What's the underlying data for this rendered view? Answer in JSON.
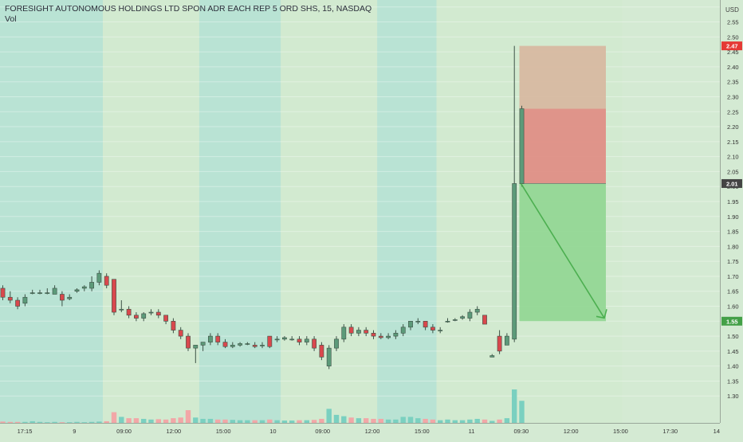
{
  "title": "FORESIGHT AUTONOMOUS HOLDINGS LTD SPON ADR EACH REP 5 ORD SHS, 15, NASDAQ",
  "volume_label": "Vol",
  "currency_label": "USD",
  "colors": {
    "session_a": "#b9e3d4",
    "session_b": "#d2ead0",
    "up_candle": "#5c9a79",
    "down_candle": "#d9484d",
    "vol_up": "#7ad0c0",
    "vol_down": "#f2a7a7",
    "stop_zone_light": "#d7b9a1",
    "stop_zone": "#df8f86",
    "target_zone": "#93d795",
    "arrow": "#4caf50",
    "price_tag_red": "#e53935",
    "price_tag_dark": "#444444",
    "price_tag_green": "#43a047"
  },
  "chart_data": {
    "type": "candlestick",
    "title": "FORESIGHT AUTONOMOUS HOLDINGS LTD SPON ADR EACH REP 5 ORD SHS, 15, NASDAQ",
    "interval": "15",
    "exchange": "NASDAQ",
    "ylim": [
      1.29,
      2.61
    ],
    "y_ticks": [
      "2.60",
      "2.55",
      "2.50",
      "2.45",
      "2.40",
      "2.35",
      "2.30",
      "2.25",
      "2.20",
      "2.15",
      "2.10",
      "2.05",
      "2.00",
      "1.95",
      "1.90",
      "1.85",
      "1.80",
      "1.75",
      "1.70",
      "1.65",
      "1.60",
      "1.55",
      "1.50",
      "1.45",
      "1.40",
      "1.35",
      "1.30"
    ],
    "x_tick_labels": [
      "17:15",
      "9",
      "09:00",
      "12:00",
      "15:00",
      "10",
      "09:00",
      "12:00",
      "15:00",
      "11",
      "09:30",
      "12:00",
      "15:00",
      "17:30",
      "14"
    ],
    "sessions": [
      {
        "from": 0,
        "to": 14,
        "kind": "a"
      },
      {
        "from": 14,
        "to": 27,
        "kind": "b"
      },
      {
        "from": 27,
        "to": 38,
        "kind": "a"
      },
      {
        "from": 38,
        "to": 51,
        "kind": "b"
      },
      {
        "from": 51,
        "to": 59,
        "kind": "a"
      },
      {
        "from": 59,
        "to": 84,
        "kind": "b"
      }
    ],
    "candles": [
      {
        "o": 1.66,
        "h": 1.67,
        "l": 1.62,
        "c": 1.63
      },
      {
        "o": 1.63,
        "h": 1.65,
        "l": 1.61,
        "c": 1.62
      },
      {
        "o": 1.62,
        "h": 1.63,
        "l": 1.59,
        "c": 1.6
      },
      {
        "o": 1.61,
        "h": 1.64,
        "l": 1.6,
        "c": 1.63
      },
      {
        "o": 1.645,
        "h": 1.655,
        "l": 1.64,
        "c": 1.645
      },
      {
        "o": 1.645,
        "h": 1.655,
        "l": 1.64,
        "c": 1.645
      },
      {
        "o": 1.645,
        "h": 1.66,
        "l": 1.64,
        "c": 1.645
      },
      {
        "o": 1.64,
        "h": 1.67,
        "l": 1.64,
        "c": 1.66
      },
      {
        "o": 1.64,
        "h": 1.65,
        "l": 1.6,
        "c": 1.62
      },
      {
        "o": 1.625,
        "h": 1.64,
        "l": 1.62,
        "c": 1.63
      },
      {
        "o": 1.65,
        "h": 1.66,
        "l": 1.645,
        "c": 1.655
      },
      {
        "o": 1.66,
        "h": 1.67,
        "l": 1.65,
        "c": 1.665
      },
      {
        "o": 1.66,
        "h": 1.7,
        "l": 1.65,
        "c": 1.68
      },
      {
        "o": 1.68,
        "h": 1.72,
        "l": 1.67,
        "c": 1.71
      },
      {
        "o": 1.7,
        "h": 1.71,
        "l": 1.66,
        "c": 1.67
      },
      {
        "o": 1.69,
        "h": 1.69,
        "l": 1.57,
        "c": 1.58
      },
      {
        "o": 1.59,
        "h": 1.62,
        "l": 1.58,
        "c": 1.59
      },
      {
        "o": 1.59,
        "h": 1.6,
        "l": 1.56,
        "c": 1.57
      },
      {
        "o": 1.57,
        "h": 1.58,
        "l": 1.55,
        "c": 1.56
      },
      {
        "o": 1.56,
        "h": 1.58,
        "l": 1.55,
        "c": 1.575
      },
      {
        "o": 1.58,
        "h": 1.59,
        "l": 1.57,
        "c": 1.58
      },
      {
        "o": 1.58,
        "h": 1.59,
        "l": 1.56,
        "c": 1.57
      },
      {
        "o": 1.57,
        "h": 1.57,
        "l": 1.54,
        "c": 1.55
      },
      {
        "o": 1.55,
        "h": 1.56,
        "l": 1.51,
        "c": 1.52
      },
      {
        "o": 1.52,
        "h": 1.53,
        "l": 1.49,
        "c": 1.5
      },
      {
        "o": 1.5,
        "h": 1.51,
        "l": 1.45,
        "c": 1.46
      },
      {
        "o": 1.46,
        "h": 1.47,
        "l": 1.41,
        "c": 1.47
      },
      {
        "o": 1.47,
        "h": 1.48,
        "l": 1.45,
        "c": 1.48
      },
      {
        "o": 1.48,
        "h": 1.51,
        "l": 1.47,
        "c": 1.5
      },
      {
        "o": 1.5,
        "h": 1.51,
        "l": 1.47,
        "c": 1.48
      },
      {
        "o": 1.48,
        "h": 1.49,
        "l": 1.46,
        "c": 1.465
      },
      {
        "o": 1.465,
        "h": 1.48,
        "l": 1.46,
        "c": 1.47
      },
      {
        "o": 1.47,
        "h": 1.48,
        "l": 1.465,
        "c": 1.475
      },
      {
        "o": 1.475,
        "h": 1.48,
        "l": 1.47,
        "c": 1.475
      },
      {
        "o": 1.47,
        "h": 1.48,
        "l": 1.46,
        "c": 1.465
      },
      {
        "o": 1.47,
        "h": 1.48,
        "l": 1.46,
        "c": 1.47
      },
      {
        "o": 1.5,
        "h": 1.5,
        "l": 1.46,
        "c": 1.465
      },
      {
        "o": 1.49,
        "h": 1.5,
        "l": 1.48,
        "c": 1.49
      },
      {
        "o": 1.49,
        "h": 1.5,
        "l": 1.485,
        "c": 1.495
      },
      {
        "o": 1.49,
        "h": 1.5,
        "l": 1.485,
        "c": 1.49
      },
      {
        "o": 1.49,
        "h": 1.5,
        "l": 1.47,
        "c": 1.48
      },
      {
        "o": 1.48,
        "h": 1.5,
        "l": 1.47,
        "c": 1.49
      },
      {
        "o": 1.49,
        "h": 1.5,
        "l": 1.45,
        "c": 1.46
      },
      {
        "o": 1.47,
        "h": 1.48,
        "l": 1.42,
        "c": 1.43
      },
      {
        "o": 1.4,
        "h": 1.47,
        "l": 1.39,
        "c": 1.46
      },
      {
        "o": 1.46,
        "h": 1.5,
        "l": 1.45,
        "c": 1.49
      },
      {
        "o": 1.49,
        "h": 1.54,
        "l": 1.48,
        "c": 1.53
      },
      {
        "o": 1.53,
        "h": 1.54,
        "l": 1.5,
        "c": 1.51
      },
      {
        "o": 1.51,
        "h": 1.53,
        "l": 1.5,
        "c": 1.52
      },
      {
        "o": 1.52,
        "h": 1.53,
        "l": 1.5,
        "c": 1.51
      },
      {
        "o": 1.51,
        "h": 1.52,
        "l": 1.49,
        "c": 1.5
      },
      {
        "o": 1.5,
        "h": 1.51,
        "l": 1.49,
        "c": 1.495
      },
      {
        "o": 1.495,
        "h": 1.51,
        "l": 1.49,
        "c": 1.5
      },
      {
        "o": 1.5,
        "h": 1.52,
        "l": 1.49,
        "c": 1.51
      },
      {
        "o": 1.51,
        "h": 1.54,
        "l": 1.5,
        "c": 1.53
      },
      {
        "o": 1.53,
        "h": 1.55,
        "l": 1.52,
        "c": 1.55
      },
      {
        "o": 1.55,
        "h": 1.56,
        "l": 1.54,
        "c": 1.55
      },
      {
        "o": 1.55,
        "h": 1.55,
        "l": 1.52,
        "c": 1.53
      },
      {
        "o": 1.53,
        "h": 1.54,
        "l": 1.51,
        "c": 1.52
      },
      {
        "o": 1.52,
        "h": 1.53,
        "l": 1.51,
        "c": 1.52
      },
      {
        "o": 1.55,
        "h": 1.56,
        "l": 1.545,
        "c": 1.55
      },
      {
        "o": 1.555,
        "h": 1.56,
        "l": 1.55,
        "c": 1.555
      },
      {
        "o": 1.56,
        "h": 1.57,
        "l": 1.555,
        "c": 1.565
      },
      {
        "o": 1.56,
        "h": 1.59,
        "l": 1.55,
        "c": 1.58
      },
      {
        "o": 1.58,
        "h": 1.6,
        "l": 1.57,
        "c": 1.59
      },
      {
        "o": 1.57,
        "h": 1.57,
        "l": 1.54,
        "c": 1.54
      },
      {
        "o": 1.43,
        "h": 1.44,
        "l": 1.43,
        "c": 1.435
      },
      {
        "o": 1.5,
        "h": 1.52,
        "l": 1.44,
        "c": 1.45
      },
      {
        "o": 1.47,
        "h": 1.51,
        "l": 1.47,
        "c": 1.5
      },
      {
        "o": 1.49,
        "h": 2.47,
        "l": 1.48,
        "c": 2.01
      },
      {
        "o": 2.01,
        "h": 2.27,
        "l": 2.0,
        "c": 2.26
      }
    ],
    "volume_max": 100,
    "volume": [
      4,
      3,
      3,
      3,
      5,
      3,
      2,
      3,
      2,
      2,
      3,
      2,
      3,
      4,
      5,
      32,
      18,
      14,
      14,
      12,
      10,
      11,
      10,
      14,
      16,
      38,
      16,
      12,
      12,
      10,
      10,
      9,
      8,
      8,
      8,
      8,
      10,
      8,
      7,
      7,
      8,
      8,
      9,
      12,
      42,
      24,
      20,
      16,
      14,
      14,
      12,
      12,
      10,
      10,
      18,
      18,
      14,
      12,
      10,
      8,
      10,
      8,
      8,
      10,
      12,
      10,
      6,
      10,
      14,
      100,
      66
    ],
    "position": {
      "type": "short",
      "entry": 2.01,
      "stop": 2.47,
      "target": 1.55,
      "stop_zone_split": 2.26
    },
    "price_labels": {
      "stop": "2.47",
      "entry": "2.01",
      "target": "1.55"
    }
  }
}
